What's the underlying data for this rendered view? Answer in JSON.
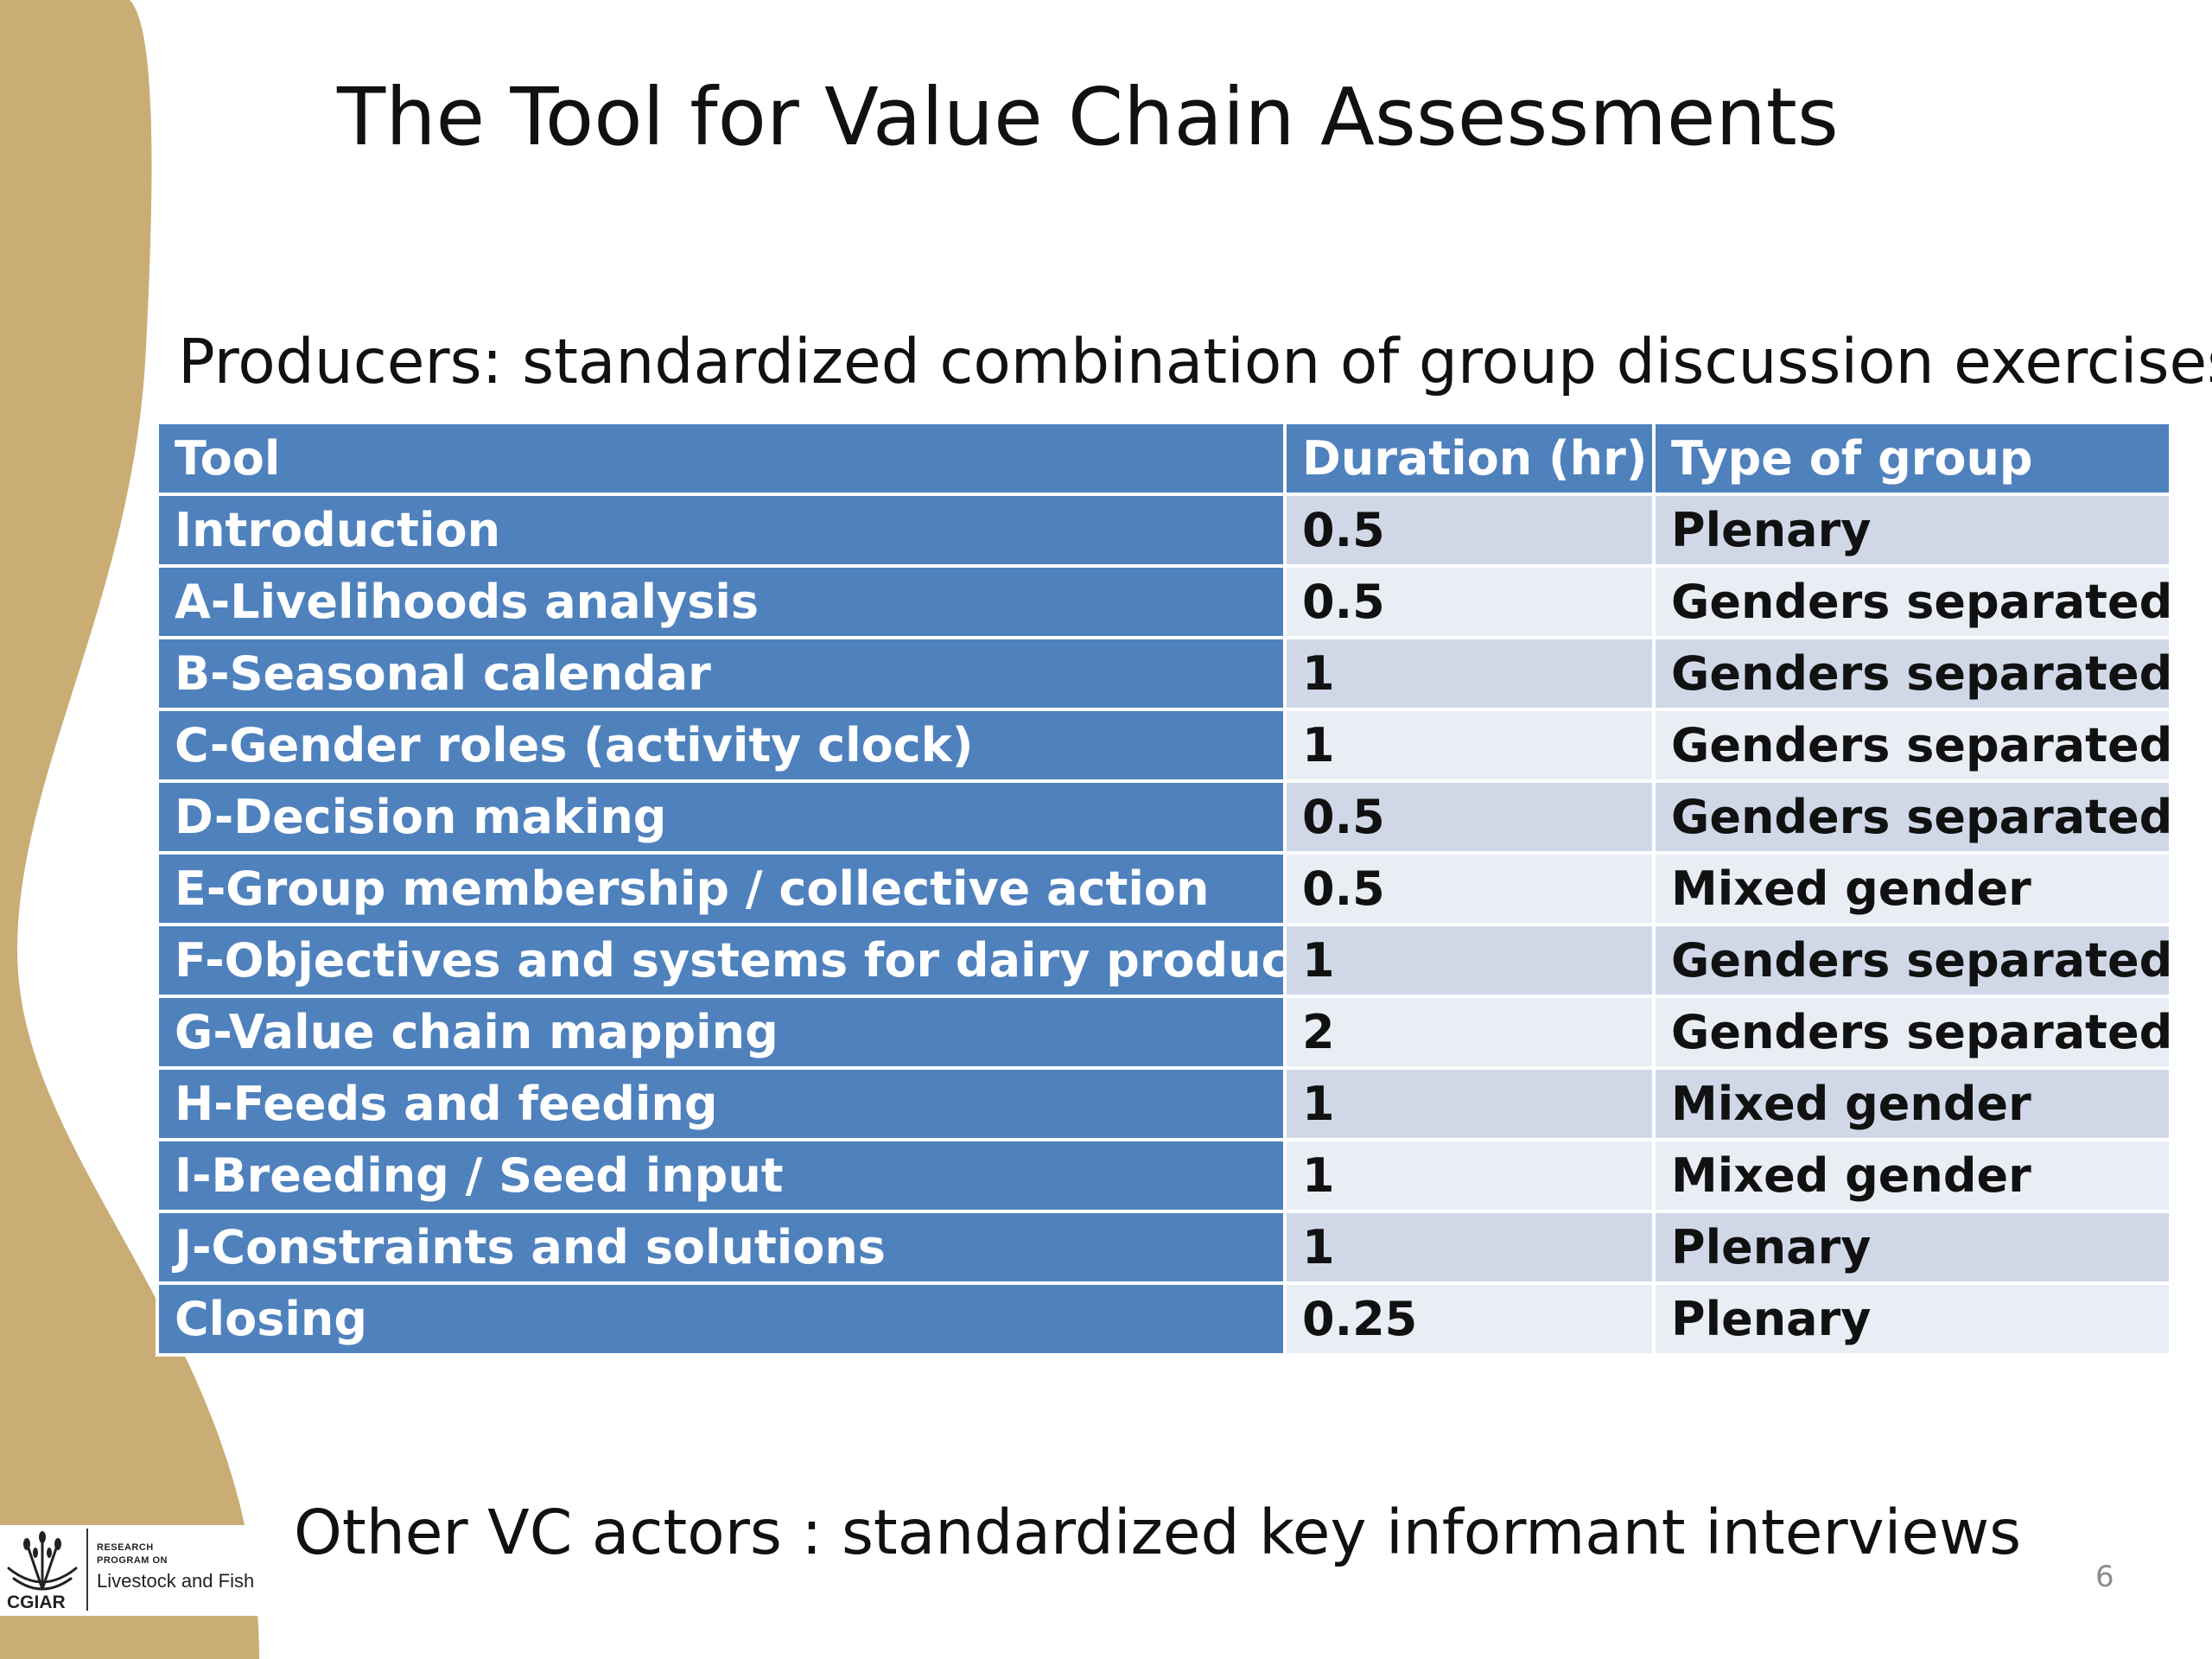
{
  "slide": {
    "title": "The Tool for Value Chain Assessments",
    "subtitle": "Producers: standardized combination of group discussion exercises",
    "footer_text": "Other VC actors : standardized key informant interviews",
    "page_number": "6",
    "colors": {
      "accent_tan": "#c9ad74",
      "header_blue": "#4f81bd",
      "row_light": "#e9edf4",
      "row_dark": "#d0d8e8"
    }
  },
  "table": {
    "headers": [
      "Tool",
      "Duration (hr)",
      "Type of group"
    ],
    "rows": [
      [
        "Introduction",
        "0.5",
        "Plenary"
      ],
      [
        "A-Livelihoods analysis",
        "0.5",
        "Genders separated"
      ],
      [
        "B-Seasonal calendar",
        "1",
        "Genders separated"
      ],
      [
        "C-Gender roles (activity clock)",
        "1",
        "Genders separated"
      ],
      [
        "D-Decision making",
        "0.5",
        "Genders separated"
      ],
      [
        "E-Group membership / collective action",
        "0.5",
        "Mixed gender"
      ],
      [
        "F-Objectives and systems for dairy production",
        "1",
        "Genders separated"
      ],
      [
        "G-Value chain mapping",
        "2",
        "Genders separated"
      ],
      [
        "H-Feeds and feeding",
        "1",
        "Mixed gender"
      ],
      [
        "I-Breeding / Seed input",
        "1",
        "Mixed gender"
      ],
      [
        "J-Constraints and solutions",
        "1",
        "Plenary"
      ],
      [
        "Closing",
        "0.25",
        "Plenary"
      ]
    ]
  },
  "logo": {
    "org": "CGIAR",
    "line1": "RESEARCH",
    "line2": "PROGRAM ON",
    "program": "Livestock and Fish",
    "icon": "wheat-sheaf-icon"
  }
}
